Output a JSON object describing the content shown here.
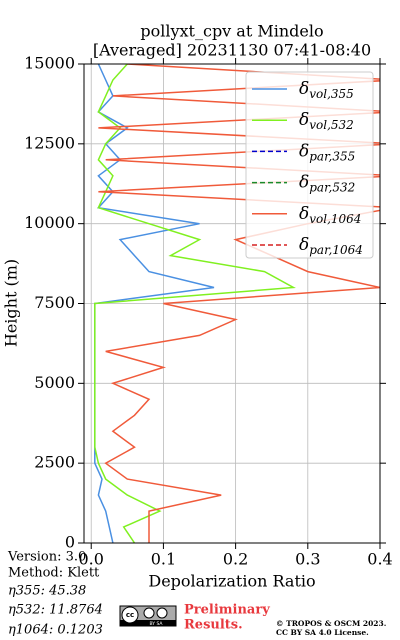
{
  "chart_data": {
    "type": "line",
    "title": "pollyxt_cpv at Mindelo",
    "subtitle": "[Averaged] 20231130 07:41-08:40",
    "x_label": "Depolarization Ratio",
    "y_label": "Height (m)",
    "xlim": [
      -0.01,
      0.4
    ],
    "xticks": [
      {
        "value": 0,
        "label": "0.0"
      },
      0.1,
      0.2,
      0.3,
      0.4
    ],
    "ylim": [
      0,
      15000
    ],
    "yticks": [
      0,
      2500,
      5000,
      7500,
      10000,
      12500,
      15000
    ],
    "grid": true,
    "legend": "upper right",
    "y": [
      0,
      500,
      1000,
      1500,
      2000,
      2500,
      3000,
      3500,
      4000,
      4500,
      5000,
      5500,
      6000,
      6500,
      7000,
      7500,
      8000,
      8500,
      9000,
      9500,
      10000,
      10500,
      11000,
      11500,
      12000,
      12500,
      13000,
      13500,
      14000,
      14500,
      15000
    ],
    "series": [
      {
        "name": "δvol,355",
        "color": "#4a90e2",
        "dash": "solid",
        "values": [
          0.03,
          0.025,
          0.02,
          0.01,
          0.015,
          0.005,
          0.005,
          0.005,
          0.005,
          0.005,
          0.005,
          0.005,
          0.005,
          0.005,
          0.005,
          0.005,
          0.17,
          0.08,
          0.06,
          0.04,
          0.15,
          0.01,
          0.03,
          0.01,
          0.04,
          0.02,
          0.05,
          0.01,
          0.03,
          0.02,
          0.01
        ]
      },
      {
        "name": "δvol,532",
        "color": "#80f020",
        "dash": "solid",
        "values": [
          0.06,
          0.045,
          0.095,
          0.05,
          0.02,
          0.01,
          0.005,
          0.005,
          0.005,
          0.005,
          0.005,
          0.005,
          0.005,
          0.005,
          0.005,
          0.005,
          0.28,
          0.24,
          0.11,
          0.15,
          0.08,
          0.01,
          0.02,
          0.03,
          0.01,
          0.02,
          0.04,
          0.01,
          0.02,
          0.03,
          0.05
        ]
      },
      {
        "name": "δpar,355",
        "color": "#0000cc",
        "dash": "dashed",
        "values": [
          null,
          null,
          null,
          null,
          null,
          null,
          null,
          null,
          null,
          null,
          null,
          null,
          null,
          null,
          null,
          null,
          null,
          null,
          null,
          null,
          null,
          null,
          null,
          null,
          null,
          null,
          null,
          null,
          null,
          null,
          null
        ]
      },
      {
        "name": "δpar,532",
        "color": "#1a8a2a",
        "dash": "dashed",
        "values": [
          null,
          null,
          null,
          null,
          null,
          null,
          null,
          null,
          null,
          null,
          null,
          null,
          null,
          null,
          null,
          null,
          null,
          null,
          null,
          null,
          null,
          null,
          null,
          null,
          null,
          null,
          null,
          null,
          null,
          null,
          null
        ]
      },
      {
        "name": "δvol,1064",
        "color": "#f05a3a",
        "dash": "solid",
        "values": [
          0.08,
          0.08,
          0.08,
          0.18,
          0.05,
          0.02,
          0.06,
          0.03,
          0.06,
          0.08,
          0.03,
          0.1,
          0.02,
          0.15,
          0.2,
          0.1,
          0.4,
          0.3,
          0.25,
          0.2,
          0.3,
          0.42,
          0.01,
          0.42,
          0.02,
          0.42,
          0.01,
          0.42,
          0.03,
          0.42,
          0.05
        ]
      },
      {
        "name": "δpar,1064",
        "color": "#d62020",
        "dash": "dashed",
        "values": [
          null,
          null,
          null,
          null,
          null,
          null,
          null,
          null,
          null,
          null,
          null,
          null,
          null,
          null,
          null,
          null,
          null,
          null,
          null,
          null,
          null,
          null,
          null,
          null,
          null,
          null,
          null,
          null,
          null,
          null,
          null
        ]
      }
    ]
  },
  "footer": {
    "version": "Version: 3.0",
    "method": "Method: Klett",
    "eta355": "η355:  45.38",
    "eta532": "η532: 11.8764",
    "eta1064": "η1064: 0.1203",
    "badge_cc": "cc",
    "badge_text": "BY SA",
    "preliminary_1": "Preliminary",
    "preliminary_2": "Results.",
    "copyright_1": "© TROPOS & OSCM 2023.",
    "copyright_2": "CC BY SA 4.0 License."
  }
}
